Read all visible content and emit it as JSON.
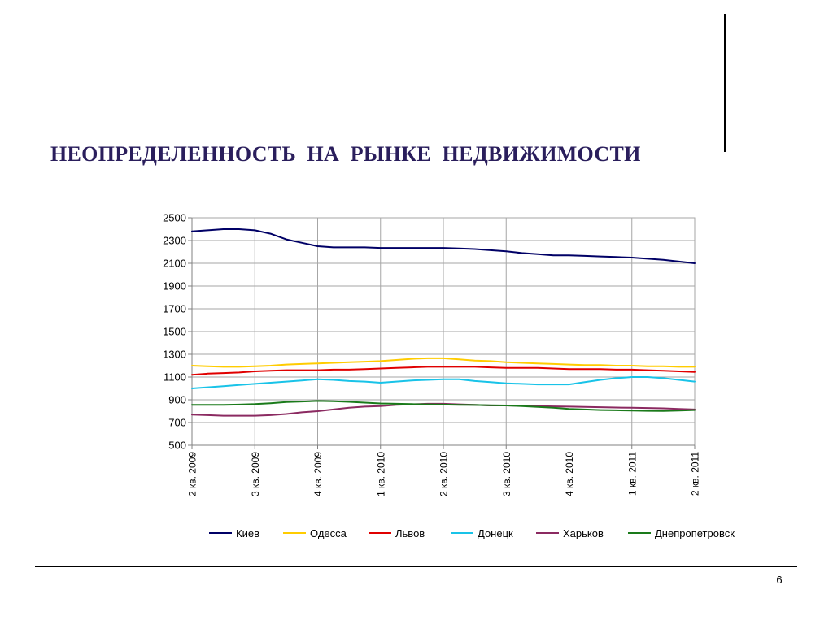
{
  "slide": {
    "title": "НЕОПРЕДЕЛЕННОСТЬ  НА  РЫНКЕ  НЕДВИЖИМОСТИ",
    "page_number": "6"
  },
  "chart_data": {
    "type": "line",
    "title": "",
    "xlabel": "",
    "ylabel": "",
    "ylim": [
      500,
      2500
    ],
    "yticks": [
      "500",
      "700",
      "900",
      "1100",
      "1300",
      "1500",
      "1700",
      "1900",
      "2100",
      "2300",
      "2500"
    ],
    "xticks": [
      "2 кв. 2009",
      "3 кв. 2009",
      "4 кв. 2009",
      "1 кв. 2010",
      "2 кв. 2010",
      "3 кв. 2010",
      "4 кв. 2010",
      "1 кв. 2011",
      "2 кв. 2011"
    ],
    "grid": true,
    "legend_position": "bottom",
    "x": [
      0,
      0.25,
      0.5,
      0.75,
      1,
      1.25,
      1.5,
      1.75,
      2,
      2.25,
      2.5,
      2.75,
      3,
      3.25,
      3.5,
      3.75,
      4,
      4.25,
      4.5,
      4.75,
      5,
      5.25,
      5.5,
      5.75,
      6,
      6.25,
      6.5,
      6.75,
      7,
      7.25,
      7.5,
      7.75,
      8
    ],
    "series": [
      {
        "name": "Киев",
        "color": "#000066",
        "values": [
          2380,
          2390,
          2400,
          2400,
          2390,
          2360,
          2310,
          2280,
          2250,
          2240,
          2240,
          2240,
          2235,
          2235,
          2235,
          2235,
          2235,
          2230,
          2225,
          2215,
          2205,
          2190,
          2180,
          2170,
          2170,
          2165,
          2160,
          2155,
          2150,
          2140,
          2130,
          2115,
          2100
        ]
      },
      {
        "name": "Одесса",
        "color": "#ffcc00",
        "values": [
          1200,
          1195,
          1190,
          1190,
          1195,
          1200,
          1210,
          1215,
          1220,
          1225,
          1230,
          1235,
          1240,
          1250,
          1260,
          1265,
          1265,
          1255,
          1245,
          1240,
          1230,
          1225,
          1220,
          1215,
          1210,
          1205,
          1205,
          1200,
          1200,
          1195,
          1195,
          1190,
          1190
        ]
      },
      {
        "name": "Львов",
        "color": "#e00000",
        "values": [
          1120,
          1130,
          1135,
          1140,
          1150,
          1155,
          1160,
          1160,
          1160,
          1165,
          1165,
          1170,
          1175,
          1180,
          1185,
          1190,
          1190,
          1190,
          1190,
          1185,
          1180,
          1180,
          1180,
          1175,
          1170,
          1170,
          1170,
          1165,
          1165,
          1160,
          1155,
          1150,
          1145
        ]
      },
      {
        "name": "Донецк",
        "color": "#19c3e8",
        "values": [
          1000,
          1010,
          1020,
          1030,
          1040,
          1050,
          1060,
          1070,
          1080,
          1075,
          1065,
          1060,
          1050,
          1060,
          1070,
          1075,
          1080,
          1080,
          1065,
          1055,
          1045,
          1040,
          1035,
          1035,
          1035,
          1055,
          1075,
          1090,
          1100,
          1100,
          1090,
          1075,
          1060
        ]
      },
      {
        "name": "Харьков",
        "color": "#8b2a61",
        "values": [
          770,
          765,
          760,
          760,
          760,
          765,
          775,
          790,
          800,
          815,
          830,
          840,
          845,
          855,
          860,
          865,
          865,
          860,
          855,
          850,
          850,
          848,
          845,
          842,
          840,
          838,
          835,
          832,
          830,
          828,
          825,
          820,
          815
        ]
      },
      {
        "name": "Днепропетровск",
        "color": "#1a7a1a",
        "values": [
          855,
          855,
          855,
          858,
          862,
          870,
          880,
          885,
          890,
          888,
          882,
          875,
          868,
          865,
          862,
          860,
          858,
          856,
          854,
          852,
          850,
          845,
          838,
          830,
          820,
          815,
          810,
          808,
          805,
          803,
          802,
          805,
          810
        ]
      }
    ]
  }
}
